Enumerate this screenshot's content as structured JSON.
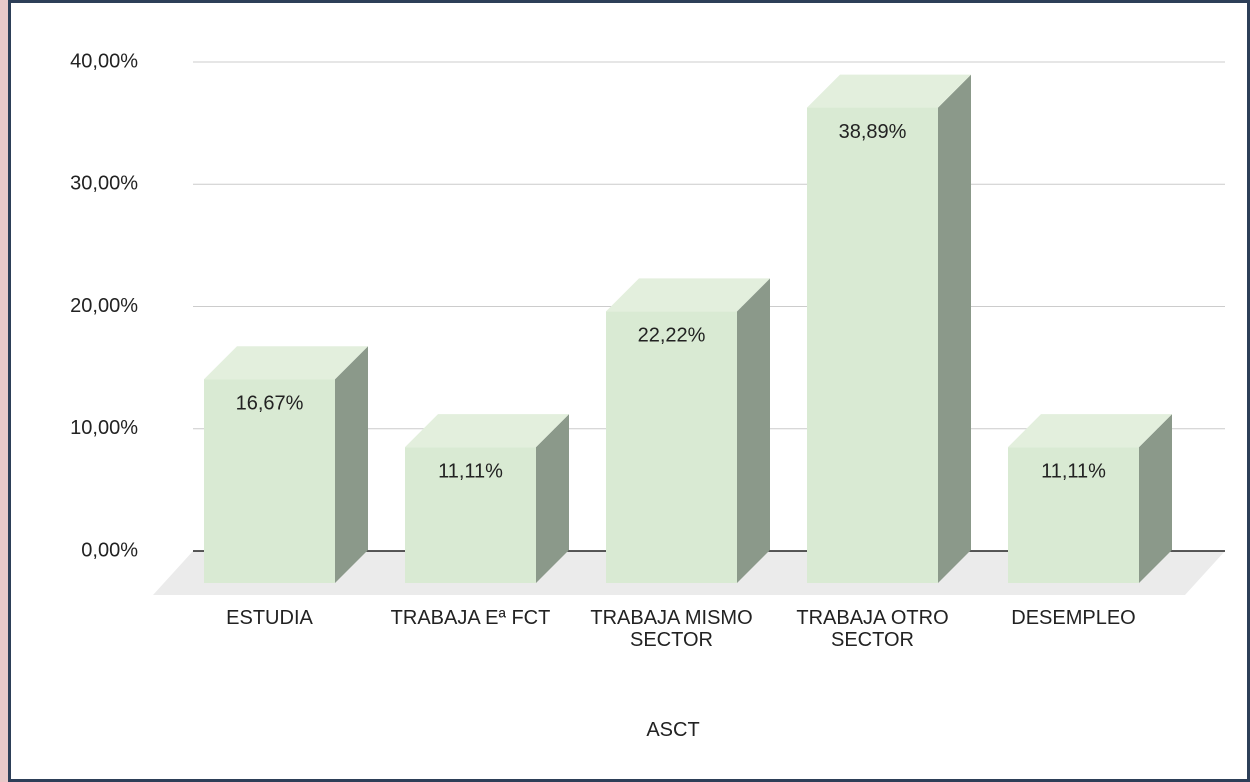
{
  "chart_data": {
    "type": "bar3d",
    "categories": [
      "ESTUDIA",
      "TRABAJA Eª FCT",
      "TRABAJA MISMO SECTOR",
      "TRABAJA OTRO SECTOR",
      "DESEMPLEO"
    ],
    "values": [
      16.67,
      11.11,
      22.22,
      38.89,
      11.11
    ],
    "value_labels": [
      "16,67%",
      "11,11%",
      "22,22%",
      "38,89%",
      "11,11%"
    ],
    "xlabel": "ASCT",
    "ylim": [
      0,
      40
    ],
    "yticks": [
      {
        "value": 0,
        "label": "0,00%"
      },
      {
        "value": 10,
        "label": "10,00%"
      },
      {
        "value": 20,
        "label": "20,00%"
      },
      {
        "value": 30,
        "label": "30,00%"
      },
      {
        "value": 40,
        "label": "40,00%"
      }
    ],
    "grid": true,
    "colors": {
      "front": "#d9ead3",
      "top": "#e3efdd",
      "side": "#8b998a"
    }
  }
}
